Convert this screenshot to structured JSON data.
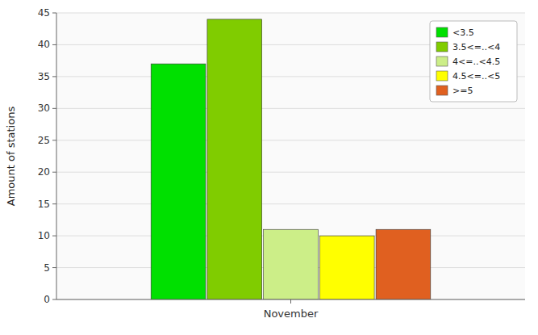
{
  "chart_data": {
    "type": "bar",
    "ylabel": "Amount of stations",
    "categories": [
      "November"
    ],
    "series": [
      {
        "name": "<3.5",
        "color": "#00e000",
        "values": [
          37
        ]
      },
      {
        "name": "3.5<=..<4",
        "color": "#80cc00",
        "values": [
          44
        ]
      },
      {
        "name": "4<=..<4.5",
        "color": "#ccee88",
        "values": [
          11
        ]
      },
      {
        "name": "4.5<=..<5",
        "color": "#ffff00",
        "values": [
          10
        ]
      },
      {
        "name": ">=5",
        "color": "#e06020",
        "values": [
          11
        ]
      }
    ],
    "ylim": [
      0,
      45
    ],
    "yticks": [
      0,
      5,
      10,
      15,
      20,
      25,
      30,
      35,
      40,
      45
    ],
    "grid": true,
    "legend": "upper right"
  }
}
